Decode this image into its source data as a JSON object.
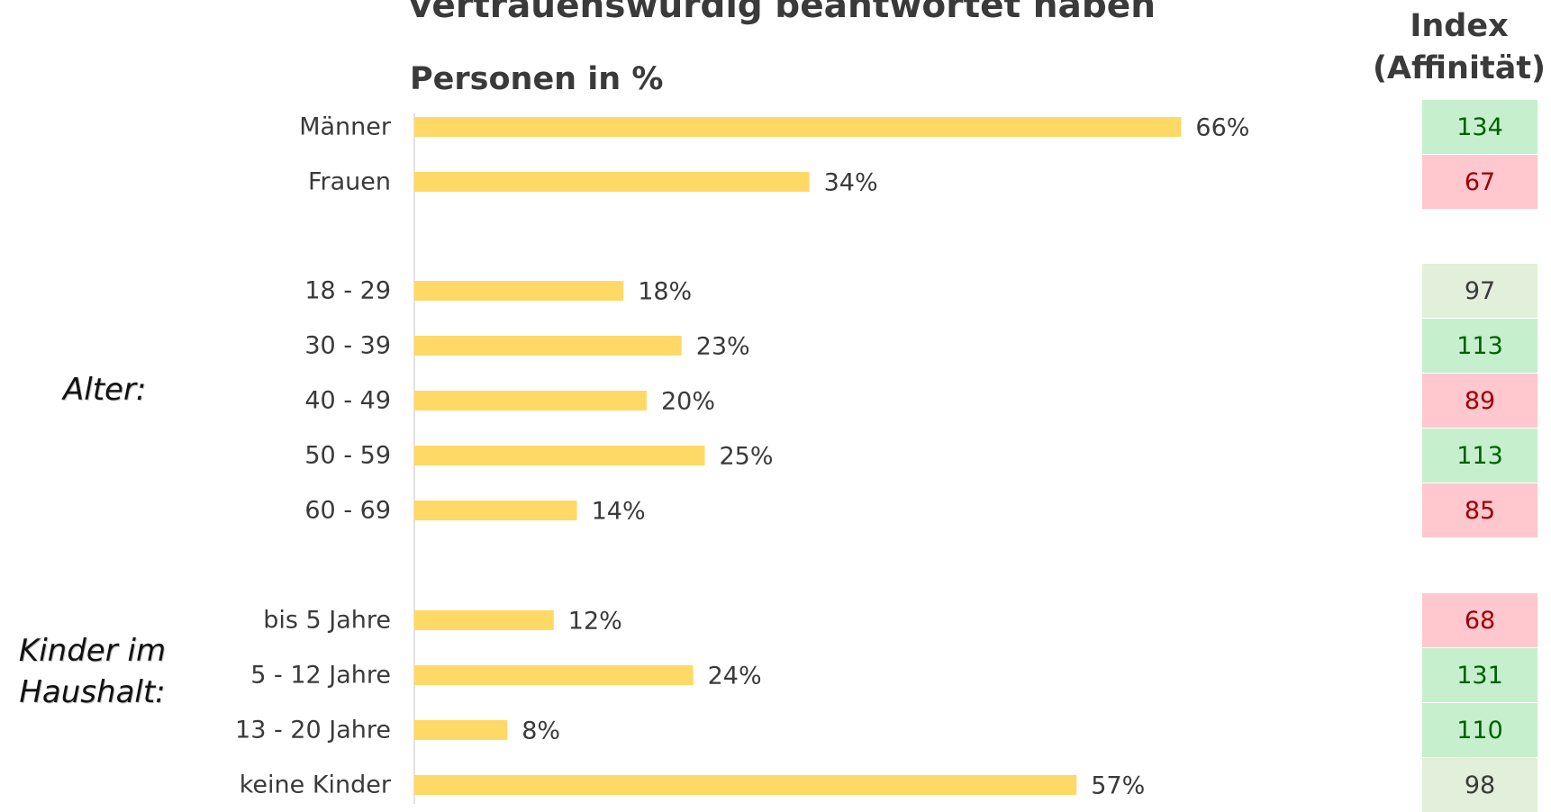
{
  "header": {
    "title_line": "vertrauenswürdig beantwortet haben",
    "subtitle": "Personen in %",
    "index_title_1": "Index",
    "index_title_2": "(Affinität)"
  },
  "groups": {
    "alter": "Alter:",
    "kinder_1": "Kinder im",
    "kinder_2": "Haushalt:"
  },
  "colors": {
    "bar": "#ffd966",
    "axis": "#d9d9d9",
    "index_high_bg": "#c6efce",
    "index_high_fg": "#006100",
    "index_low_bg": "#ffc7ce",
    "index_low_fg": "#9c0006",
    "index_neutral_bg": "#e2efda",
    "index_neutral_fg": "#3a3a3a"
  },
  "chart_data": {
    "type": "bar",
    "orientation": "horizontal",
    "unit": "%",
    "xlim": [
      0,
      100
    ],
    "categories": [
      "Männer",
      "Frauen",
      "18 - 29",
      "30 - 39",
      "40 - 49",
      "50 - 59",
      "60 - 69",
      "bis 5 Jahre",
      "5 - 12 Jahre",
      "13 - 20 Jahre",
      "keine Kinder"
    ],
    "values": [
      66,
      34,
      18,
      23,
      20,
      25,
      14,
      12,
      24,
      8,
      57
    ],
    "labels": [
      "66%",
      "34%",
      "18%",
      "23%",
      "20%",
      "25%",
      "14%",
      "12%",
      "24%",
      "8%",
      "57%"
    ],
    "index": [
      134,
      67,
      97,
      113,
      89,
      113,
      85,
      68,
      131,
      110,
      98
    ],
    "index_class": [
      "high",
      "low",
      "neutral",
      "high",
      "low",
      "high",
      "low",
      "low",
      "high",
      "high",
      "neutral"
    ]
  }
}
